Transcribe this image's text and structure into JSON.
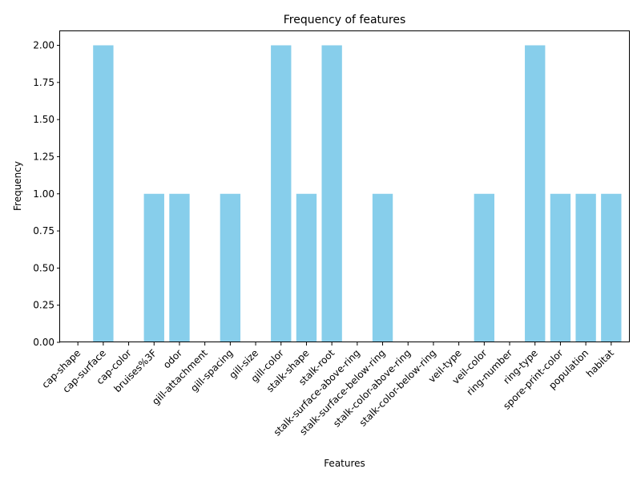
{
  "chart_data": {
    "type": "bar",
    "title": "Frequency of features",
    "xlabel": "Features",
    "ylabel": "Frequency",
    "ylim": [
      0,
      2.1
    ],
    "yticks": [
      "0.00",
      "0.25",
      "0.50",
      "0.75",
      "1.00",
      "1.25",
      "1.50",
      "1.75",
      "2.00"
    ],
    "categories": [
      "cap-shape",
      "cap-surface",
      "cap-color",
      "bruises%3F",
      "odor",
      "gill-attachment",
      "gill-spacing",
      "gill-size",
      "gill-color",
      "stalk-shape",
      "stalk-root",
      "stalk-surface-above-ring",
      "stalk-surface-below-ring",
      "stalk-color-above-ring",
      "stalk-color-below-ring",
      "veil-type",
      "veil-color",
      "ring-number",
      "ring-type",
      "spore-print-color",
      "population",
      "habitat"
    ],
    "values": [
      0,
      2,
      0,
      1,
      1,
      0,
      1,
      0,
      2,
      1,
      2,
      0,
      1,
      0,
      0,
      0,
      1,
      0,
      2,
      1,
      1,
      1
    ],
    "bar_color": "#87ceeb",
    "grid": false,
    "legend": "none"
  }
}
